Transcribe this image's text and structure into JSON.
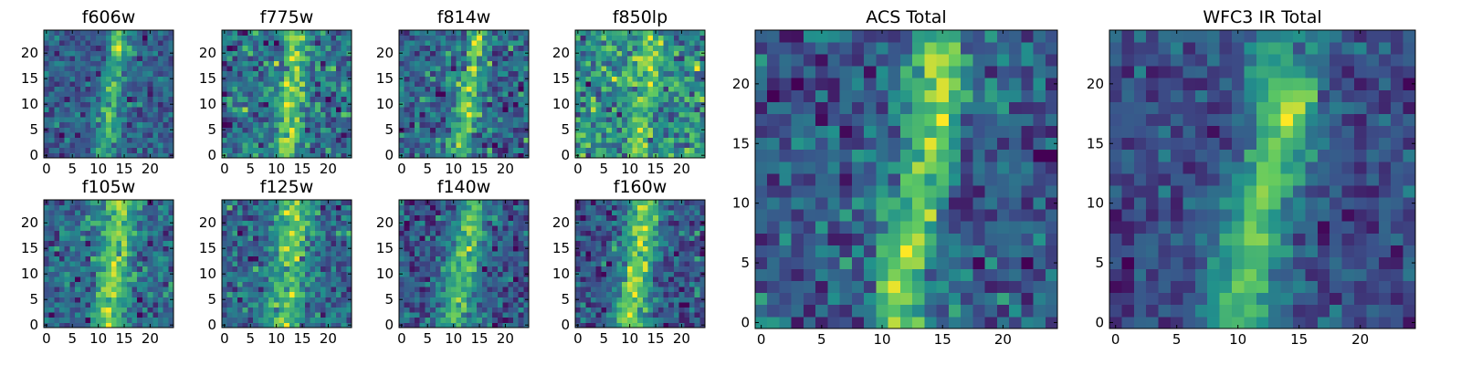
{
  "figure": {
    "colormap": "viridis",
    "colormap_stops": [
      "#440154",
      "#3b528b",
      "#21918c",
      "#5ec962",
      "#fde725"
    ],
    "frame_color": "#000000"
  },
  "chart_data": [
    {
      "type": "heatmap",
      "title": "f606w",
      "grid_size": [
        25,
        25
      ],
      "xlim": [
        -0.5,
        24.5
      ],
      "ylim": [
        -0.5,
        24.5
      ],
      "xticks": [
        0,
        5,
        10,
        15,
        20
      ],
      "yticks": [
        0,
        5,
        10,
        15,
        20
      ],
      "xticklabels": [
        "0",
        "5",
        "10",
        "15",
        "20"
      ],
      "yticklabels": [
        "0",
        "5",
        "10",
        "15",
        "20"
      ],
      "streak": {
        "start": [
          11,
          0
        ],
        "end": [
          14,
          24
        ],
        "strength": 0.55,
        "width": 1.4,
        "blob": {
          "center": [
            14,
            21
          ],
          "strength": 0.15
        }
      },
      "noise": 0.3,
      "seed": 11
    },
    {
      "type": "heatmap",
      "title": "f775w",
      "grid_size": [
        25,
        25
      ],
      "xlim": [
        -0.5,
        24.5
      ],
      "ylim": [
        -0.5,
        24.5
      ],
      "xticks": [
        0,
        5,
        10,
        15,
        20
      ],
      "yticks": [
        0,
        5,
        10,
        15,
        20
      ],
      "xticklabels": [
        "0",
        "5",
        "10",
        "15",
        "20"
      ],
      "yticklabels": [
        "0",
        "5",
        "10",
        "15",
        "20"
      ],
      "streak": {
        "start": [
          12,
          0
        ],
        "end": [
          14,
          24
        ],
        "strength": 0.45,
        "width": 1.6
      },
      "noise": 0.32,
      "seed": 23
    },
    {
      "type": "heatmap",
      "title": "f814w",
      "grid_size": [
        25,
        25
      ],
      "xlim": [
        -0.5,
        24.5
      ],
      "ylim": [
        -0.5,
        24.5
      ],
      "xticks": [
        0,
        5,
        10,
        15,
        20
      ],
      "yticks": [
        0,
        5,
        10,
        15,
        20
      ],
      "xticklabels": [
        "0",
        "5",
        "10",
        "15",
        "20"
      ],
      "yticklabels": [
        "0",
        "5",
        "10",
        "15",
        "20"
      ],
      "streak": {
        "start": [
          11,
          0
        ],
        "end": [
          15,
          24
        ],
        "strength": 0.5,
        "width": 1.5
      },
      "noise": 0.3,
      "seed": 37
    },
    {
      "type": "heatmap",
      "title": "f850lp",
      "grid_size": [
        25,
        25
      ],
      "xlim": [
        -0.5,
        24.5
      ],
      "ylim": [
        -0.5,
        24.5
      ],
      "xticks": [
        0,
        5,
        10,
        15,
        20
      ],
      "yticks": [
        0,
        5,
        10,
        15,
        20
      ],
      "xticklabels": [
        "0",
        "5",
        "10",
        "15",
        "20"
      ],
      "yticklabels": [
        "0",
        "5",
        "10",
        "15",
        "20"
      ],
      "streak": {
        "start": [
          12,
          0
        ],
        "end": [
          14,
          24
        ],
        "strength": 0.3,
        "width": 1.6
      },
      "noise": 0.34,
      "seed": 53
    },
    {
      "type": "heatmap",
      "title": "f105w",
      "grid_size": [
        25,
        25
      ],
      "xlim": [
        -0.5,
        24.5
      ],
      "ylim": [
        -0.5,
        24.5
      ],
      "xticks": [
        0,
        5,
        10,
        15,
        20
      ],
      "yticks": [
        0,
        5,
        10,
        15,
        20
      ],
      "xticklabels": [
        "0",
        "5",
        "10",
        "15",
        "20"
      ],
      "yticklabels": [
        "0",
        "5",
        "10",
        "15",
        "20"
      ],
      "streak": {
        "start": [
          12,
          0
        ],
        "end": [
          14,
          24
        ],
        "strength": 0.4,
        "width": 2.2
      },
      "noise": 0.22,
      "seed": 61
    },
    {
      "type": "heatmap",
      "title": "f125w",
      "grid_size": [
        25,
        25
      ],
      "xlim": [
        -0.5,
        24.5
      ],
      "ylim": [
        -0.5,
        24.5
      ],
      "xticks": [
        0,
        5,
        10,
        15,
        20
      ],
      "yticks": [
        0,
        5,
        10,
        15,
        20
      ],
      "xticklabels": [
        "0",
        "5",
        "10",
        "15",
        "20"
      ],
      "yticklabels": [
        "0",
        "5",
        "10",
        "15",
        "20"
      ],
      "streak": {
        "start": [
          11,
          0
        ],
        "end": [
          14,
          24
        ],
        "strength": 0.4,
        "width": 2.4
      },
      "noise": 0.22,
      "seed": 71
    },
    {
      "type": "heatmap",
      "title": "f140w",
      "grid_size": [
        25,
        25
      ],
      "xlim": [
        -0.5,
        24.5
      ],
      "ylim": [
        -0.5,
        24.5
      ],
      "xticks": [
        0,
        5,
        10,
        15,
        20
      ],
      "yticks": [
        0,
        5,
        10,
        15,
        20
      ],
      "xticklabels": [
        "0",
        "5",
        "10",
        "15",
        "20"
      ],
      "yticklabels": [
        "0",
        "5",
        "10",
        "15",
        "20"
      ],
      "streak": {
        "start": [
          10,
          0
        ],
        "end": [
          14,
          24
        ],
        "strength": 0.42,
        "width": 2.4
      },
      "noise": 0.22,
      "seed": 83
    },
    {
      "type": "heatmap",
      "title": "f160w",
      "grid_size": [
        25,
        25
      ],
      "xlim": [
        -0.5,
        24.5
      ],
      "ylim": [
        -0.5,
        24.5
      ],
      "xticks": [
        0,
        5,
        10,
        15,
        20
      ],
      "yticks": [
        0,
        5,
        10,
        15,
        20
      ],
      "xticklabels": [
        "0",
        "5",
        "10",
        "15",
        "20"
      ],
      "yticklabels": [
        "0",
        "5",
        "10",
        "15",
        "20"
      ],
      "streak": {
        "start": [
          10,
          0
        ],
        "end": [
          13,
          24
        ],
        "strength": 0.5,
        "width": 2.2
      },
      "noise": 0.2,
      "seed": 97
    },
    {
      "type": "heatmap",
      "title": "ACS Total",
      "grid_size": [
        25,
        25
      ],
      "xlim": [
        -0.5,
        24.5
      ],
      "ylim": [
        -0.5,
        24.5
      ],
      "xticks": [
        0,
        5,
        10,
        15,
        20
      ],
      "yticks": [
        0,
        5,
        10,
        15,
        20
      ],
      "xticklabels": [
        "0",
        "5",
        "10",
        "15",
        "20"
      ],
      "yticklabels": [
        "0",
        "5",
        "10",
        "15",
        "20"
      ],
      "streak": {
        "start": [
          11,
          0
        ],
        "end": [
          15,
          22
        ],
        "strength": 0.55,
        "width": 1.5,
        "blob": {
          "center": [
            15,
            21
          ],
          "strength": 0.2
        }
      },
      "noise": 0.24,
      "seed": 131
    },
    {
      "type": "heatmap",
      "title": "WFC3 IR Total",
      "grid_size": [
        25,
        25
      ],
      "xlim": [
        -0.5,
        24.5
      ],
      "ylim": [
        -0.5,
        24.5
      ],
      "xticks": [
        0,
        5,
        10,
        15,
        20
      ],
      "yticks": [
        0,
        5,
        10,
        15,
        20
      ],
      "xticklabels": [
        "0",
        "5",
        "10",
        "15",
        "20"
      ],
      "yticklabels": [
        "0",
        "5",
        "10",
        "15",
        "20"
      ],
      "streak": {
        "start": [
          10,
          1
        ],
        "end": [
          14,
          19
        ],
        "strength": 0.55,
        "width": 2.0,
        "blob": {
          "center": [
            14,
            18
          ],
          "strength": 0.2
        }
      },
      "noise": 0.18,
      "seed": 149
    }
  ]
}
